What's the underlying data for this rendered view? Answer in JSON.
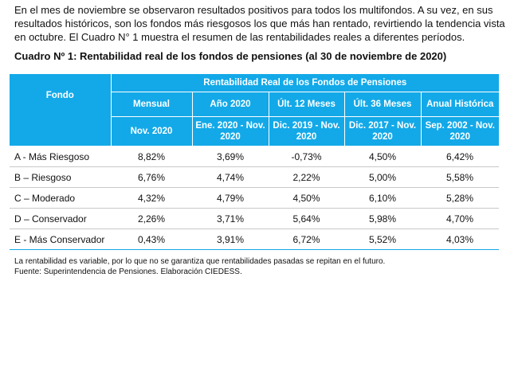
{
  "intro": "En el mes de noviembre se observaron resultados positivos para todos los multifondos. A su vez, en sus resultados históricos, son los fondos más riesgosos los que más han rentado, revirtiendo la tendencia vista en octubre. El Cuadro N° 1 muestra el resumen de las rentabilidades reales a diferentes períodos.",
  "table_title": "Cuadro Nº 1: Rentabilidad real de los fondos de pensiones (al 30 de noviembre de 2020)",
  "table": {
    "fondo_header": "Fondo",
    "group_header": "Rentabilidad Real de los Fondos de Pensiones",
    "columns": [
      {
        "label": "Mensual",
        "period": "Nov. 2020"
      },
      {
        "label": "Año 2020",
        "period": "Ene. 2020 - Nov. 2020"
      },
      {
        "label": "Últ. 12 Meses",
        "period": "Dic. 2019 - Nov. 2020"
      },
      {
        "label": "Últ. 36 Meses",
        "period": "Dic. 2017 - Nov. 2020"
      },
      {
        "label": "Anual Histórica",
        "period": "Sep. 2002 - Nov. 2020"
      }
    ],
    "rows": [
      {
        "fondo": "A - Más Riesgoso",
        "values": [
          "8,82%",
          "3,69%",
          "-0,73%",
          "4,50%",
          "6,42%"
        ]
      },
      {
        "fondo": "B – Riesgoso",
        "values": [
          "6,76%",
          "4,74%",
          "2,22%",
          "5,00%",
          "5,58%"
        ]
      },
      {
        "fondo": "C – Moderado",
        "values": [
          "4,32%",
          "4,79%",
          "4,50%",
          "6,10%",
          "5,28%"
        ]
      },
      {
        "fondo": "D – Conservador",
        "values": [
          "2,26%",
          "3,71%",
          "5,64%",
          "5,98%",
          "4,70%"
        ]
      },
      {
        "fondo": "E - Más Conservador",
        "values": [
          "0,43%",
          "3,91%",
          "6,72%",
          "5,52%",
          "4,03%"
        ]
      }
    ]
  },
  "notes": {
    "disclaimer": "La rentabilidad es variable, por lo que no se garantiza que rentabilidades pasadas se repitan en el futuro.",
    "source": "Fuente: Superintendencia de Pensiones. Elaboración CIEDESS."
  },
  "colors": {
    "header_blue": "#13a9e8",
    "grid_gray": "#c8c8c8"
  }
}
